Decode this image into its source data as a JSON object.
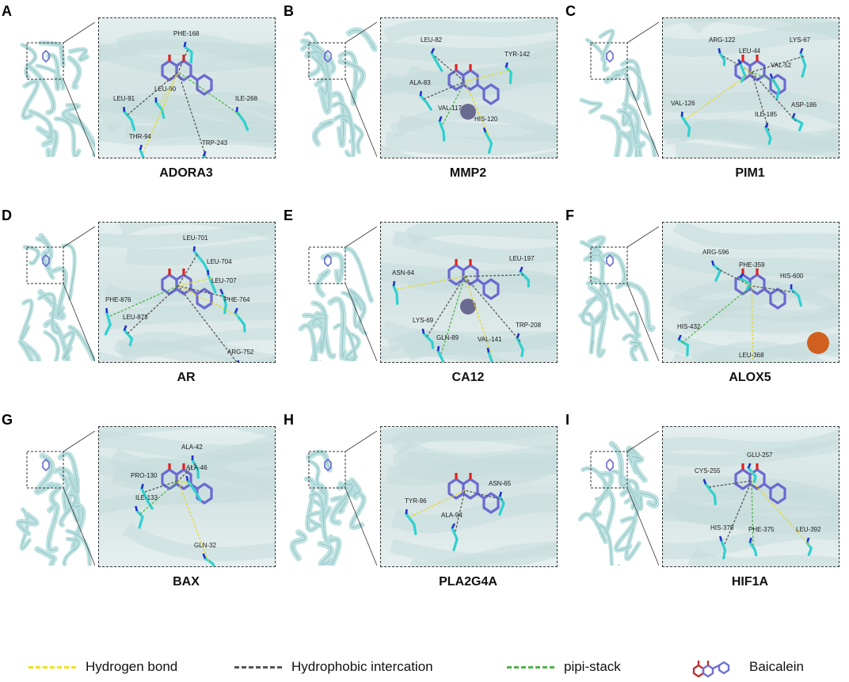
{
  "panels": [
    {
      "letter": "A",
      "name": "ADORA3",
      "residues": [
        {
          "label": "PHE-168",
          "x": 94,
          "y": 22
        },
        {
          "label": "LEU-90",
          "x": 70,
          "y": 92
        },
        {
          "label": "LEU-91",
          "x": 18,
          "y": 104
        },
        {
          "label": "ILE-268",
          "x": 172,
          "y": 104
        },
        {
          "label": "THR-94",
          "x": 38,
          "y": 152
        },
        {
          "label": "TRP-243",
          "x": 130,
          "y": 160
        }
      ]
    },
    {
      "letter": "B",
      "name": "MMP2",
      "residues": [
        {
          "label": "LEU-82",
          "x": 50,
          "y": 30
        },
        {
          "label": "TYR-142",
          "x": 156,
          "y": 48
        },
        {
          "label": "ALA-83",
          "x": 36,
          "y": 84
        },
        {
          "label": "VAL-117",
          "x": 72,
          "y": 116
        },
        {
          "label": "HIS-120",
          "x": 118,
          "y": 130
        }
      ]
    },
    {
      "letter": "C",
      "name": "PIM1",
      "residues": [
        {
          "label": "ARG-122",
          "x": 58,
          "y": 30
        },
        {
          "label": "LEU-44",
          "x": 96,
          "y": 44
        },
        {
          "label": "LYS-67",
          "x": 160,
          "y": 30
        },
        {
          "label": "VAL-52",
          "x": 136,
          "y": 62
        },
        {
          "label": "VAL-126",
          "x": 10,
          "y": 110
        },
        {
          "label": "ASP-186",
          "x": 162,
          "y": 112
        },
        {
          "label": "ILE-185",
          "x": 116,
          "y": 124
        }
      ]
    },
    {
      "letter": "D",
      "name": "AR",
      "residues": [
        {
          "label": "LEU-701",
          "x": 106,
          "y": 22
        },
        {
          "label": "LEU-704",
          "x": 136,
          "y": 52
        },
        {
          "label": "LEU-707",
          "x": 142,
          "y": 76
        },
        {
          "label": "PHE-876",
          "x": 8,
          "y": 100
        },
        {
          "label": "PHE-764",
          "x": 158,
          "y": 100
        },
        {
          "label": "LEU-873",
          "x": 30,
          "y": 122
        },
        {
          "label": "ARG-752",
          "x": 162,
          "y": 166
        }
      ]
    },
    {
      "letter": "E",
      "name": "CA12",
      "residues": [
        {
          "label": "LEU-197",
          "x": 162,
          "y": 48
        },
        {
          "label": "ASN-64",
          "x": 14,
          "y": 66
        },
        {
          "label": "LYS-69",
          "x": 40,
          "y": 126
        },
        {
          "label": "GLN-89",
          "x": 70,
          "y": 148
        },
        {
          "label": "VAL-141",
          "x": 122,
          "y": 150
        },
        {
          "label": "TRP-208",
          "x": 170,
          "y": 132
        }
      ]
    },
    {
      "letter": "F",
      "name": "ALOX5",
      "residues": [
        {
          "label": "ARG-596",
          "x": 50,
          "y": 40
        },
        {
          "label": "PHE-359",
          "x": 96,
          "y": 56
        },
        {
          "label": "HIS-600",
          "x": 148,
          "y": 70
        },
        {
          "label": "HIS-432",
          "x": 18,
          "y": 134
        },
        {
          "label": "LEU-368",
          "x": 96,
          "y": 170
        }
      ]
    },
    {
      "letter": "G",
      "name": "BAX",
      "residues": [
        {
          "label": "ALA-42",
          "x": 104,
          "y": 28
        },
        {
          "label": "ALA-46",
          "x": 110,
          "y": 54
        },
        {
          "label": "PRO-130",
          "x": 40,
          "y": 64
        },
        {
          "label": "ILE-133",
          "x": 46,
          "y": 92
        },
        {
          "label": "GLN-32",
          "x": 120,
          "y": 152
        }
      ]
    },
    {
      "letter": "H",
      "name": "PLA2G4A",
      "residues": [
        {
          "label": "ASN-65",
          "x": 136,
          "y": 74
        },
        {
          "label": "TYR-96",
          "x": 30,
          "y": 96
        },
        {
          "label": "ALA-94",
          "x": 76,
          "y": 114
        }
      ]
    },
    {
      "letter": "I",
      "name": "HIF1A",
      "residues": [
        {
          "label": "CYS-255",
          "x": 40,
          "y": 58
        },
        {
          "label": "GLU-257",
          "x": 106,
          "y": 38
        },
        {
          "label": "HIS-378",
          "x": 60,
          "y": 130
        },
        {
          "label": "PHE-375",
          "x": 108,
          "y": 132
        },
        {
          "label": "LEU-392",
          "x": 168,
          "y": 132
        }
      ]
    }
  ],
  "legend": [
    {
      "label": "Hydrogen bond",
      "color": "#f0e020"
    },
    {
      "label": "Hydrophobic intercation",
      "color": "#555555"
    },
    {
      "label": "pipi-stack",
      "color": "#4fb34a"
    },
    {
      "label": "Baicalein",
      "icon": "baicalein-molecule-icon"
    }
  ],
  "colors": {
    "protein": "#b7dede",
    "residue": "#2fd0d0",
    "ligand": "#6a6ad0",
    "oxygen": "#e02020",
    "nitrogen": "#2030d0",
    "metal": "#6a6a90",
    "iron": "#d06020"
  }
}
